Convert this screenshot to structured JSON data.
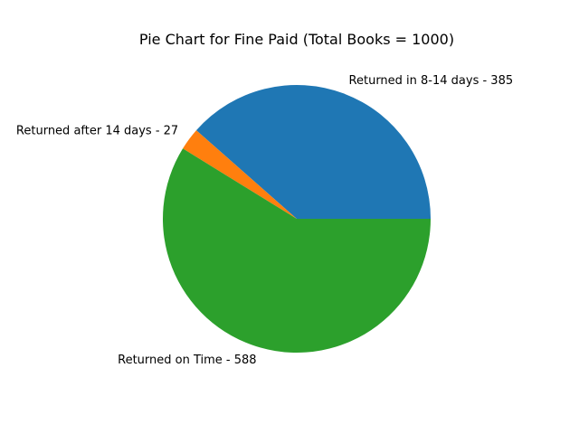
{
  "chart_data": {
    "type": "pie",
    "title": "Pie Chart for Fine Paid (Total Books = 1000)",
    "slices": [
      {
        "label": "Returned in 8-14 days - 385",
        "value": 385,
        "color": "#1f77b4"
      },
      {
        "label": "Returned after 14 days - 27",
        "value": 27,
        "color": "#ff7f0e"
      },
      {
        "label": "Returned on Time - 588",
        "value": 588,
        "color": "#2ca02c"
      }
    ],
    "start_angle_deg": 0,
    "direction": "counterclockwise"
  }
}
